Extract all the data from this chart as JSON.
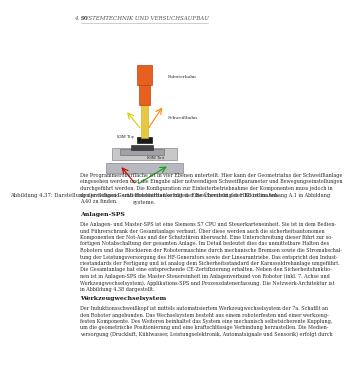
{
  "page_number": "90",
  "header_right": "4. SYSTEMTECHNIK UND VERSUCHSAUFBAU",
  "figure_caption": "Abbildung 4.37: Darstellung der Schneid- und Roboterbaüke mit der Beschreibung der Koordinaten-\nsysteme.",
  "body_text_1": "Die Programmeroberfläche ist in vier Ebenen unterteilt. Hier kann der Geometriatus der Schweifßanlage\neingesehen werden und die Eingabe aller notwendigen Schweifßparameter und Bewegungseinstellungen\ndurchgeführt werden. Die Konfiguration zur Einleiterbetriebnahme der Komponenten muss jedoch in\nden jeweiligen Geräteabschnittten erfolgen. Eine Übersicht des HBE ist im Anhang A.1 in Abbildung\nA.40 zu finden.",
  "heading_1": "Anlagen-SPS",
  "body_text_2": "Die Anlagen- und Master-SPS ist eine Siemens S7 CPU und Steuerkarteneinheit. Sie ist in dem Bedien-\nund Führerschrank der Gesamtanlage verbaut. Über diese werden auch die sicherheitsautonomen\nKomponenten der Not-Aus und der Schutztüren überwacht. Eine Unterschreitung dieser führt zur so-\nfortigen Notabschaltung der gesamten Anlage. Im Detail bedeutet dies das unmittelbare Halten des\nRoboters und das Blockieren der Robotermaschine durch mechanische Bremsen sowie die Stromabschal-\ntung der Leistungsversorgung des HF-Generators sowie der Linearantriebe. Das entspricht den Indust-\nriestandards der Fertigung und ist analog dem Sicherheitsstandard der Karusseldrehanlage umgeführt.\nDie Gesamtanlage hat eine entsprechende CE-Zertifizierung erhalten. Neben den Sicherheitsfunktio-\nnen ist in Anlagen-SPS die Master-Steuereinheit im Anlagenverbund von Roboter (inkl. 7. Achse und\nWerkzeugwechselsystem), Applikations-SPS und Prozessdatenerfassung. Die Netzwerk-Architektur ist\nin Abbildung 4.38 dargestellt.",
  "heading_2": "Werkzeugwechselsystem",
  "body_text_3": "Der Induktionsschweifßkopf ist mittels automatisiertem Werkzeugwechselsystem der 7a. Schafßt an\nden Roboter angebunden. Das Wechselsystem besteht aus einem roboterfesten und einer werkzeug-\nfesten Komponente. Des Weiteren beinhaltet das System eine mechanisch selbstsicherente Kupplung,\num die geometrische Positionierung und eine kraftschlüssige Verbindung herzustellen. Die Medien-\nversorgung (Druckluft, Kühlwasser, Leistungselektronik, Automatsignale und Sensorik) erfolgt durch",
  "bg_color": "#ffffff",
  "text_color": "#2c2c2c",
  "header_color": "#555555",
  "heading_color": "#1a1a1a",
  "line_color": "#aaaaaa"
}
